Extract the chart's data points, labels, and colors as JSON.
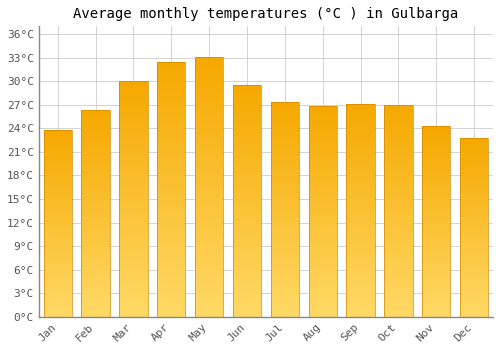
{
  "months": [
    "Jan",
    "Feb",
    "Mar",
    "Apr",
    "May",
    "Jun",
    "Jul",
    "Aug",
    "Sep",
    "Oct",
    "Nov",
    "Dec"
  ],
  "values": [
    23.8,
    26.3,
    30.0,
    32.5,
    33.1,
    29.5,
    27.3,
    26.8,
    27.1,
    27.0,
    24.3,
    22.8
  ],
  "title": "Average monthly temperatures (°C ) in Gulbarga",
  "yticks": [
    0,
    3,
    6,
    9,
    12,
    15,
    18,
    21,
    24,
    27,
    30,
    33,
    36
  ],
  "ylim": [
    0,
    37
  ],
  "bar_color_top": "#F5A800",
  "bar_color_bottom": "#FFD966",
  "background_color": "#ffffff",
  "grid_color": "#cccccc",
  "title_fontsize": 10,
  "tick_fontsize": 8,
  "font_family": "monospace",
  "bar_width": 0.75,
  "bar_edge_color": "#D08800",
  "bar_edge_width": 0.5
}
